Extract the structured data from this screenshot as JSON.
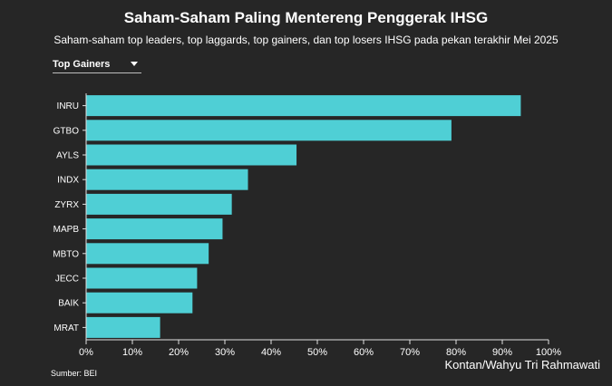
{
  "header": {
    "title": "Saham-Saham Paling Mentereng Penggerak IHSG",
    "subtitle": "Saham-saham top leaders, top laggards, top gainers, dan top losers IHSG pada pekan terakhir Mei 2025"
  },
  "filter": {
    "selected": "Top Gainers",
    "icon": "caret-down-icon"
  },
  "footer": {
    "source": "Sumber: BEI",
    "credit": "Kontan/Wahyu Tri Rahmawati"
  },
  "colors": {
    "background": "#262626",
    "bar": "#4fcfd5",
    "text": "#ffffff",
    "axis": "#e0e0e0"
  },
  "chart_data": {
    "type": "bar",
    "orientation": "horizontal",
    "title": "",
    "xlabel": "",
    "ylabel": "",
    "categories": [
      "INRU",
      "GTBO",
      "AYLS",
      "INDX",
      "ZYRX",
      "MAPB",
      "MBTO",
      "JECC",
      "BAIK",
      "MRAT"
    ],
    "values": [
      94,
      79,
      45.5,
      35,
      31.5,
      29.5,
      26.5,
      24,
      23,
      16
    ],
    "xlim": [
      0,
      100
    ],
    "xticks": [
      0,
      10,
      20,
      30,
      40,
      50,
      60,
      70,
      80,
      90,
      100
    ],
    "tick_suffix": "%",
    "grid": false
  }
}
